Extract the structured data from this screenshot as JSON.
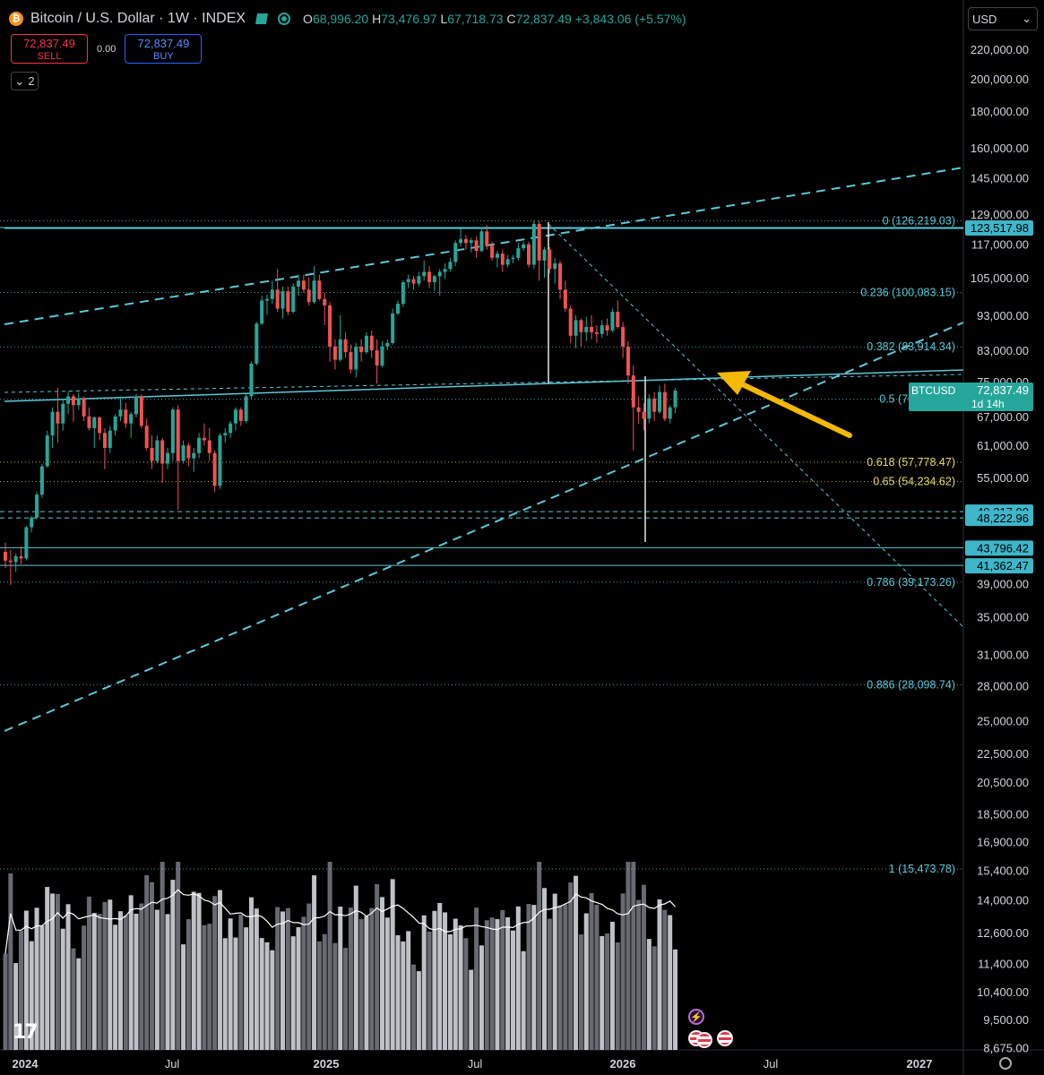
{
  "header": {
    "title": "Bitcoin / U.S. Dollar · 1W · INDEX",
    "coin_symbol": "₿",
    "open": "68,996.20",
    "high": "73,476.97",
    "low": "67,718.73",
    "close": "72,837.49",
    "change": "+3,843.06 (+5.57%)",
    "labels": {
      "o": "O",
      "h": "H",
      "l": "L",
      "c": "C"
    },
    "icons": [
      "flag-icon",
      "live-status-icon"
    ]
  },
  "trade": {
    "sell_price": "72,837.49",
    "sell_label": "SELL",
    "spread": "0.00",
    "buy_price": "72,837.49",
    "buy_label": "BUY"
  },
  "indicator_toggle": {
    "count": "2",
    "icon": "chevron-down-icon"
  },
  "currency": {
    "selected": "USD",
    "icon": "chevron-down-icon"
  },
  "colors": {
    "up": "#26a69a",
    "down": "#ef5350",
    "line": "#5dc8d8",
    "fib": "#5dc8d8",
    "fib_gold": "#e8d96b",
    "arrow": "#f5b800",
    "last_price": "#26a69a"
  },
  "chart_data": {
    "type": "candlestick",
    "symbol": "BTCUSD",
    "timeframe": "1W",
    "scale": "log",
    "y_ticks": [
      "220,000.00",
      "200,000.00",
      "180,000.00",
      "160,000.00",
      "145,000.00",
      "129,000.00",
      "117,000.00",
      "105,000.00",
      "93,000.00",
      "83,000.00",
      "75,000.00",
      "67,000.00",
      "61,000.00",
      "55,000.00",
      "49,217.00",
      "48,222.96",
      "43,796.42",
      "41,362.47",
      "39,000.00",
      "35,000.00",
      "31,000.00",
      "28,000.00",
      "25,000.00",
      "22,500.00",
      "20,500.00",
      "18,500.00",
      "16,900.00",
      "15,400.00",
      "14,000.00",
      "12,600.00",
      "11,400.00",
      "10,400.00",
      "9,500.00",
      "8,675.00"
    ],
    "x_ticks": [
      "2024",
      "Jul",
      "2025",
      "Jul",
      "2026",
      "Jul",
      "2027"
    ],
    "last_price": {
      "symbol": "BTCUSD",
      "value": "72,837.49",
      "countdown": "1d 14h"
    },
    "price_badges": [
      {
        "value": "123,517.98",
        "price": 123518
      },
      {
        "value": "49,217.00",
        "price": 49217
      },
      {
        "value": "48,222.96",
        "price": 48223
      },
      {
        "value": "43,796.42",
        "price": 43796
      },
      {
        "value": "41,362.47",
        "price": 41362
      }
    ],
    "fib_levels": [
      {
        "ratio": "0",
        "label": "0 (126,219.03)",
        "price": 126219
      },
      {
        "ratio": "0.236",
        "label": "0.236 (100,083.15)",
        "price": 100083
      },
      {
        "ratio": "0.382",
        "label": "0.382 (83,914.34)",
        "price": 83914
      },
      {
        "ratio": "0.5",
        "label": "0.5 (70,846.41)",
        "price": 70846
      },
      {
        "ratio": "0.618",
        "label": "0.618 (57,778.47)",
        "price": 57778
      },
      {
        "ratio": "0.65",
        "label": "0.65 (54,234.62)",
        "price": 54235
      },
      {
        "ratio": "0.786",
        "label": "0.786 (39,173.26)",
        "price": 39173
      },
      {
        "ratio": "0.886",
        "label": "0.886 (28,098.74)",
        "price": 28099
      },
      {
        "ratio": "1",
        "label": "1 (15,473.78)",
        "price": 15474
      }
    ],
    "candles_ohlc": [
      [
        43.2,
        44.5,
        41.0,
        42.0
      ],
      [
        42.0,
        43.5,
        38.8,
        41.8
      ],
      [
        41.8,
        43.0,
        40.5,
        42.6
      ],
      [
        42.6,
        44.0,
        41.5,
        42.3
      ],
      [
        42.3,
        47.0,
        42.0,
        46.8
      ],
      [
        46.8,
        48.5,
        46.0,
        48.3
      ],
      [
        48.3,
        52.5,
        48.0,
        52.0
      ],
      [
        52.0,
        57.5,
        51.5,
        57.0
      ],
      [
        57.0,
        64.0,
        56.8,
        63.0
      ],
      [
        63.0,
        69.0,
        60.5,
        68.0
      ],
      [
        68.0,
        73.5,
        61.5,
        65.5
      ],
      [
        65.5,
        71.0,
        64.0,
        69.8
      ],
      [
        69.8,
        72.7,
        67.5,
        71.5
      ],
      [
        71.5,
        72.0,
        65.8,
        69.5
      ],
      [
        69.5,
        72.3,
        68.5,
        71.0
      ],
      [
        71.0,
        71.5,
        66.0,
        67.0
      ],
      [
        67.0,
        69.0,
        64.0,
        64.5
      ],
      [
        64.5,
        67.0,
        60.5,
        66.8
      ],
      [
        66.8,
        67.0,
        62.0,
        63.5
      ],
      [
        63.5,
        64.5,
        56.5,
        60.5
      ],
      [
        60.5,
        65.0,
        59.5,
        64.0
      ],
      [
        64.0,
        67.5,
        63.0,
        67.0
      ],
      [
        67.0,
        71.5,
        66.0,
        68.5
      ],
      [
        68.5,
        70.0,
        64.5,
        65.5
      ],
      [
        65.5,
        68.0,
        62.5,
        67.5
      ],
      [
        67.5,
        72.0,
        66.8,
        71.5
      ],
      [
        71.5,
        72.0,
        64.5,
        65.0
      ],
      [
        65.0,
        66.5,
        60.0,
        60.5
      ],
      [
        60.5,
        63.0,
        56.5,
        58.0
      ],
      [
        58.0,
        63.0,
        57.5,
        62.0
      ],
      [
        62.0,
        62.5,
        54.0,
        57.5
      ],
      [
        57.5,
        60.5,
        56.5,
        59.5
      ],
      [
        59.5,
        69.0,
        58.0,
        68.5
      ],
      [
        68.5,
        69.5,
        49.5,
        58.0
      ],
      [
        58.0,
        62.0,
        57.5,
        61.0
      ],
      [
        61.0,
        61.5,
        57.0,
        58.5
      ],
      [
        58.5,
        60.5,
        56.0,
        59.5
      ],
      [
        59.5,
        63.5,
        58.5,
        62.5
      ],
      [
        62.5,
        65.5,
        61.0,
        62.0
      ],
      [
        62.0,
        64.5,
        58.0,
        59.5
      ],
      [
        59.5,
        60.0,
        52.5,
        53.5
      ],
      [
        53.5,
        63.5,
        53.0,
        63.0
      ],
      [
        63.0,
        64.5,
        61.5,
        63.5
      ],
      [
        63.5,
        66.0,
        62.5,
        65.5
      ],
      [
        65.5,
        69.0,
        64.0,
        68.5
      ],
      [
        68.5,
        69.0,
        65.0,
        66.0
      ],
      [
        66.0,
        72.0,
        65.5,
        71.5
      ],
      [
        71.5,
        80.0,
        71.0,
        79.5
      ],
      [
        79.5,
        91.0,
        79.0,
        90.5
      ],
      [
        90.5,
        99.0,
        90.0,
        97.5
      ],
      [
        97.5,
        99.5,
        93.0,
        98.0
      ],
      [
        98.0,
        104.0,
        96.5,
        101.0
      ],
      [
        101.0,
        108.0,
        94.0,
        95.0
      ],
      [
        95.0,
        102.0,
        92.0,
        100.5
      ],
      [
        100.5,
        102.0,
        93.0,
        94.0
      ],
      [
        94.0,
        103.0,
        93.5,
        102.0
      ],
      [
        102.0,
        106.0,
        99.0,
        104.0
      ],
      [
        104.0,
        106.0,
        100.0,
        101.0
      ],
      [
        101.0,
        105.0,
        96.0,
        97.0
      ],
      [
        97.0,
        109.0,
        96.5,
        104.0
      ],
      [
        104.0,
        106.0,
        97.5,
        98.0
      ],
      [
        98.0,
        100.0,
        90.0,
        96.0
      ],
      [
        96.0,
        97.0,
        80.0,
        84.0
      ],
      [
        84.0,
        86.0,
        78.0,
        80.5
      ],
      [
        80.5,
        93.0,
        80.0,
        86.0
      ],
      [
        86.0,
        88.0,
        81.0,
        82.5
      ],
      [
        82.5,
        84.5,
        77.0,
        78.0
      ],
      [
        78.0,
        85.0,
        76.0,
        84.0
      ],
      [
        84.0,
        86.0,
        80.0,
        82.5
      ],
      [
        82.5,
        88.0,
        82.0,
        87.0
      ],
      [
        87.0,
        88.5,
        81.0,
        83.0
      ],
      [
        83.0,
        86.0,
        74.5,
        79.0
      ],
      [
        79.0,
        85.5,
        78.5,
        84.0
      ],
      [
        84.0,
        86.0,
        83.0,
        85.0
      ],
      [
        85.0,
        95.0,
        84.5,
        93.5
      ],
      [
        93.5,
        97.5,
        93.0,
        96.5
      ],
      [
        96.5,
        104.0,
        95.5,
        103.5
      ],
      [
        103.5,
        106.0,
        101.5,
        104.5
      ],
      [
        104.5,
        105.5,
        101.0,
        103.0
      ],
      [
        103.0,
        107.0,
        102.0,
        105.5
      ],
      [
        105.5,
        111.0,
        104.0,
        107.0
      ],
      [
        107.0,
        109.0,
        101.5,
        103.5
      ],
      [
        103.5,
        106.0,
        100.5,
        105.5
      ],
      [
        105.5,
        108.0,
        99.0,
        107.0
      ],
      [
        107.0,
        110.0,
        104.5,
        108.0
      ],
      [
        108.0,
        112.0,
        107.0,
        110.5
      ],
      [
        110.5,
        118.5,
        109.0,
        117.5
      ],
      [
        117.5,
        123.0,
        116.0,
        119.0
      ],
      [
        119.0,
        120.5,
        115.0,
        117.5
      ],
      [
        117.5,
        119.5,
        114.0,
        118.5
      ],
      [
        118.5,
        120.0,
        112.0,
        114.5
      ],
      [
        114.5,
        123.5,
        114.0,
        122.0
      ],
      [
        122.0,
        124.5,
        115.0,
        116.5
      ],
      [
        116.5,
        118.0,
        111.0,
        112.0
      ],
      [
        112.0,
        114.5,
        108.5,
        113.5
      ],
      [
        113.5,
        115.0,
        107.0,
        109.5
      ],
      [
        109.5,
        113.0,
        108.5,
        111.5
      ],
      [
        111.5,
        113.0,
        110.0,
        112.0
      ],
      [
        112.0,
        117.5,
        111.0,
        115.5
      ],
      [
        115.5,
        118.0,
        114.5,
        117.0
      ],
      [
        117.0,
        118.0,
        108.5,
        109.5
      ],
      [
        109.5,
        126.2,
        108.0,
        125.0
      ],
      [
        125.0,
        126.2,
        104.0,
        111.0
      ],
      [
        111.0,
        116.0,
        105.0,
        115.0
      ],
      [
        115.0,
        116.0,
        106.5,
        108.0
      ],
      [
        108.0,
        112.0,
        103.0,
        110.0
      ],
      [
        110.0,
        111.0,
        98.0,
        101.0
      ],
      [
        101.0,
        104.0,
        94.0,
        95.0
      ],
      [
        95.0,
        96.0,
        85.0,
        87.0
      ],
      [
        87.0,
        93.0,
        83.5,
        91.5
      ],
      [
        91.5,
        92.0,
        84.0,
        88.0
      ],
      [
        88.0,
        92.5,
        85.5,
        89.5
      ],
      [
        89.5,
        93.0,
        86.0,
        88.0
      ],
      [
        88.0,
        90.0,
        85.0,
        87.5
      ],
      [
        87.5,
        91.5,
        86.5,
        90.0
      ],
      [
        90.0,
        92.0,
        87.0,
        88.5
      ],
      [
        88.5,
        95.0,
        88.0,
        94.0
      ],
      [
        94.0,
        97.5,
        89.0,
        89.5
      ],
      [
        89.5,
        91.0,
        81.0,
        84.0
      ],
      [
        84.0,
        85.5,
        74.5,
        76.5
      ],
      [
        76.5,
        79.0,
        60.0,
        69.0
      ],
      [
        69.0,
        71.5,
        65.5,
        68.0
      ],
      [
        68.0,
        70.0,
        64.0,
        66.5
      ],
      [
        66.5,
        72.0,
        65.5,
        71.0
      ],
      [
        71.0,
        72.5,
        66.0,
        68.0
      ],
      [
        68.0,
        74.0,
        67.5,
        72.5
      ],
      [
        72.5,
        74.5,
        66.0,
        66.5
      ],
      [
        66.5,
        69.5,
        65.5,
        69.0
      ],
      [
        68.996,
        73.477,
        67.719,
        72.837
      ]
    ],
    "volume_ma_note_free": true,
    "trendlines": "ascending-channel, support, descending-resistance",
    "annotation": "arrow pointing to resistance"
  },
  "events": {
    "flash_icon": "⚡",
    "items": [
      "lightning-event-icon",
      "us-flag-event-icon",
      "us-flag-event-icon",
      "us-flag-event-icon"
    ]
  },
  "logo": {
    "text": "17"
  }
}
